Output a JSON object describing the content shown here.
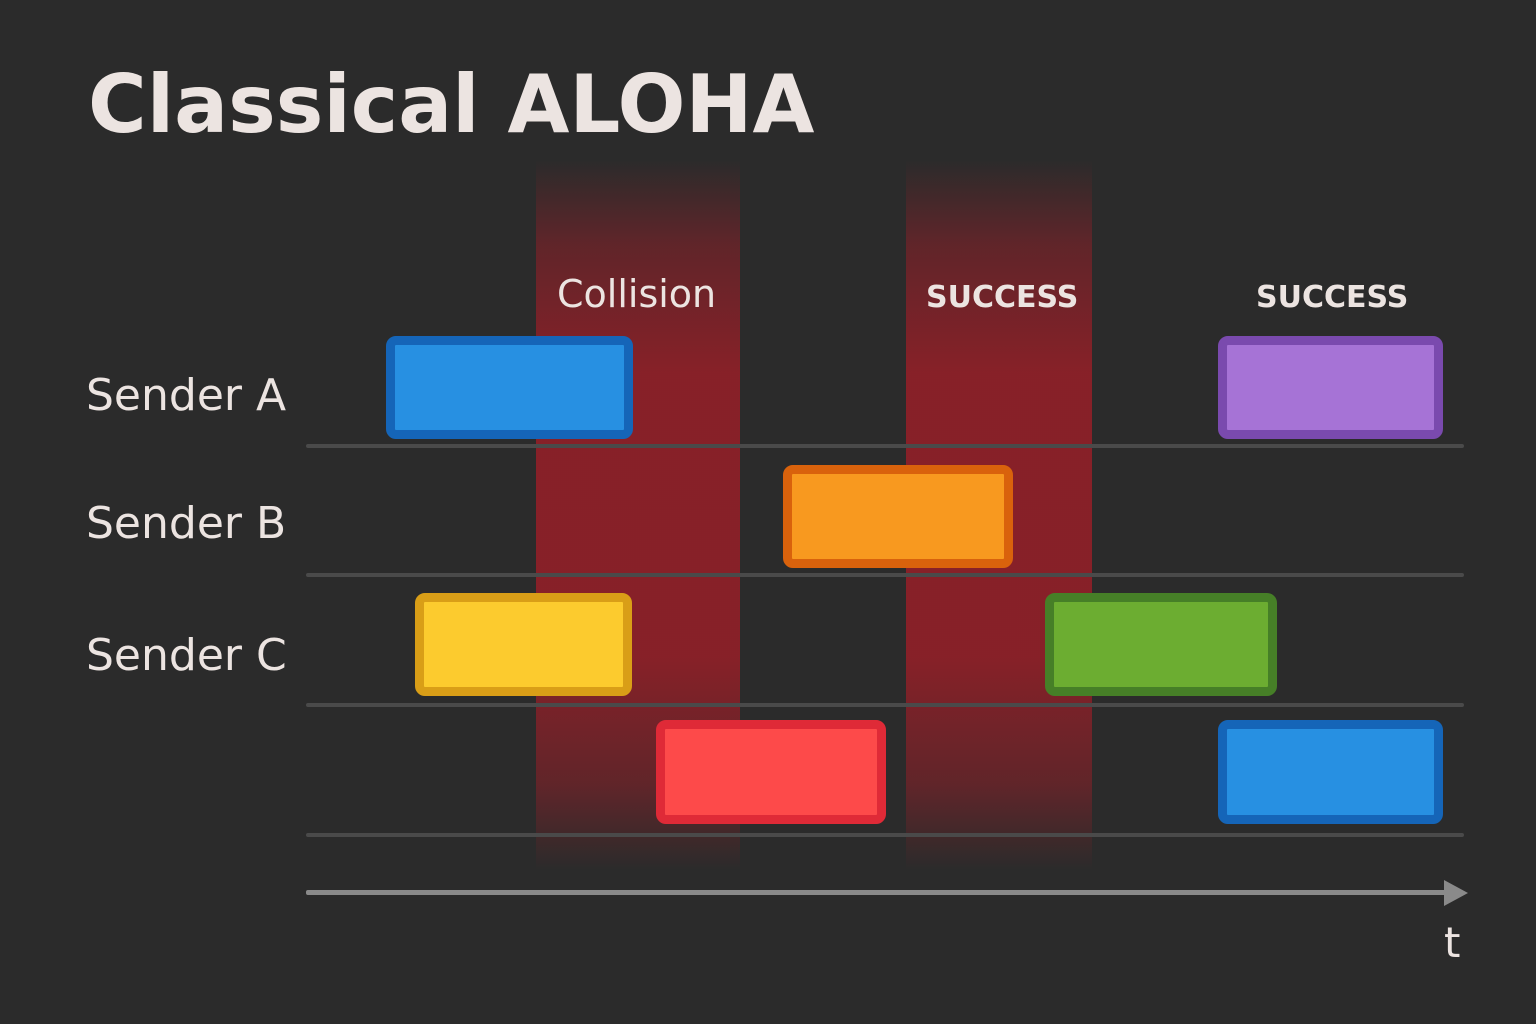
{
  "title": "Classical ALOHA",
  "annotations": {
    "collision": "Collision",
    "success_1": "SUCCESS",
    "success_2": "SUCCESS"
  },
  "senders": [
    {
      "label": "Sender A"
    },
    {
      "label": "Sender B"
    },
    {
      "label": "Sender C"
    }
  ],
  "axis": {
    "label": "t"
  },
  "colors": {
    "background": "#2b2b2b",
    "collision_band": "#8c2028",
    "blue": "#2790e2",
    "purple": "#a673d6",
    "orange": "#f8991f",
    "yellow": "#fccb2e",
    "green": "#6cad31",
    "red": "#fd4a4a"
  }
}
